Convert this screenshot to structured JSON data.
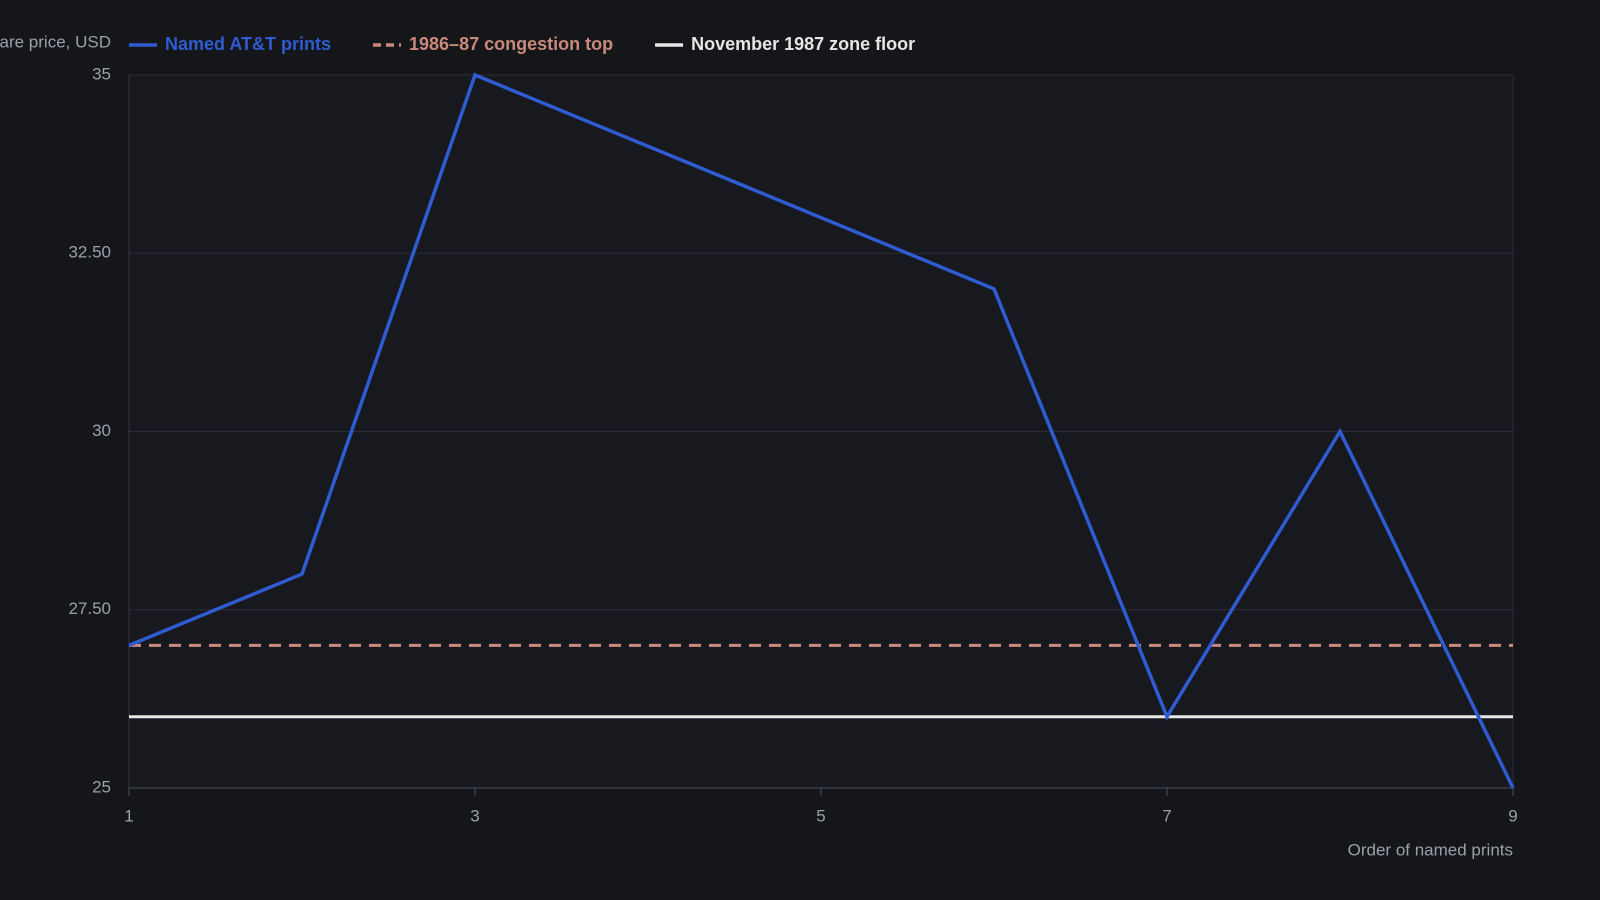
{
  "chart_data": {
    "type": "line",
    "y_label": "Share price, USD",
    "x_label": "Order of named prints",
    "x": [
      1,
      2,
      3,
      4,
      5,
      6,
      7,
      8,
      9
    ],
    "series": [
      {
        "name": "Named AT&T prints",
        "color": "#2f5bd3",
        "values": [
          27,
          28,
          35,
          34,
          33,
          32,
          26,
          30,
          25
        ]
      }
    ],
    "reference_lines": [
      {
        "name": "1986–87 congestion top",
        "color": "#c98a7c",
        "value": 27,
        "style": "dashed"
      },
      {
        "name": "November 1987 zone floor",
        "color": "#e6e6e6",
        "value": 26,
        "style": "solid"
      }
    ],
    "xlim": [
      1,
      9
    ],
    "xticks": [
      1,
      3,
      5,
      7,
      9
    ],
    "ylim": [
      25,
      35
    ],
    "yticks": [
      25,
      {
        "value": 27.5,
        "label": "27.50"
      },
      30,
      {
        "value": 32.5,
        "label": "32.50"
      },
      35
    ],
    "grid": true
  }
}
